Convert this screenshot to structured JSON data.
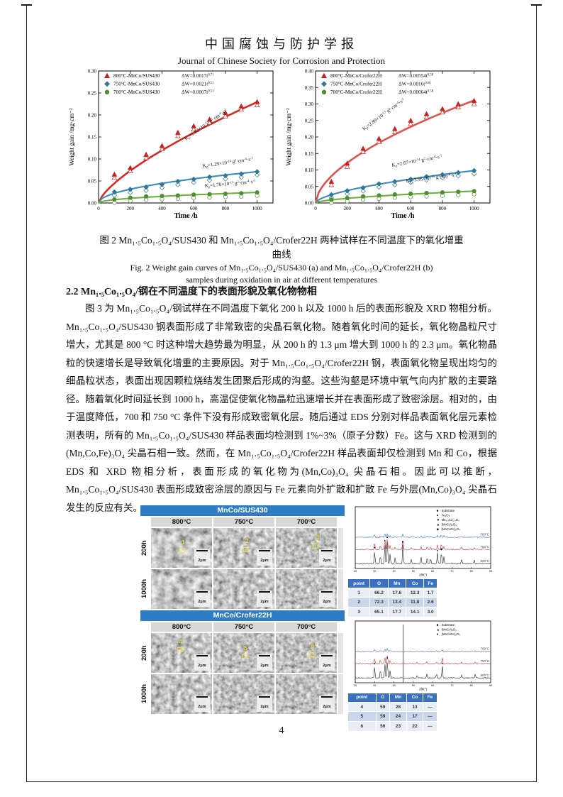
{
  "header": {
    "title_zh": "中国腐蚀与防护学报",
    "title_en": "Journal of Chinese Society for Corrosion and Protection"
  },
  "chart_data": [
    {
      "type": "scatter",
      "panel": "a",
      "xlabel": "Time /h",
      "ylabel": "Weight gain /mg·cm⁻²",
      "xlim": [
        0,
        1100
      ],
      "ylim": [
        0,
        0.3
      ],
      "xticks": [
        0,
        200,
        400,
        600,
        800,
        1000
      ],
      "yticks": [
        "0.00",
        "0.05",
        "0.10",
        "0.15",
        "0.20",
        "0.25",
        "0.30"
      ],
      "x": [
        100,
        200,
        300,
        400,
        500,
        600,
        700,
        800,
        900,
        1000
      ],
      "series": [
        {
          "name": "800°C-MnCo/SUS430",
          "marker": "triangle",
          "color": "#c9211e",
          "line_color": "#d42b22",
          "line_width": 2.6,
          "fit_A": 0.0017,
          "fit_n": 0.71,
          "values": [
            0.065,
            0.08,
            0.11,
            0.13,
            0.16,
            0.175,
            0.19,
            0.205,
            0.22,
            0.23
          ],
          "dw": [
            {
              "t": "ΔW=0.0017t"
            },
            {
              "sup": "0.71"
            }
          ],
          "kp": {
            "x": 169,
            "y": 102,
            "rot": -35,
            "segs": [
              {
                "t": "K"
              },
              {
                "sub": "p"
              },
              {
                "t": "=1.82×10"
              },
              {
                "sup": "-13"
              },
              {
                "t": " g"
              },
              {
                "sup": "2"
              },
              {
                "t": "·cm"
              },
              {
                "sup": "-4"
              },
              {
                "t": "·s"
              },
              {
                "sup": "-1"
              }
            ]
          }
        },
        {
          "name": "750°C-MnCo/SUS430",
          "marker": "diamond",
          "color": "#2e7796",
          "line_color": "#3e8cb8",
          "line_width": 2.1,
          "fit_A": 0.0021,
          "fit_n": 0.51,
          "values": [
            0.025,
            0.031,
            0.036,
            0.042,
            0.049,
            0.054,
            0.059,
            0.062,
            0.066,
            0.071
          ],
          "dw": [
            {
              "t": "ΔW=0.0021t"
            },
            {
              "sup": "0.51"
            }
          ],
          "kp": {
            "x": 193,
            "y": 140,
            "rot": -8,
            "segs": [
              {
                "t": "K"
              },
              {
                "sub": "p"
              },
              {
                "t": "=1.29×10"
              },
              {
                "sup": "-14"
              },
              {
                "t": " g"
              },
              {
                "sup": "2"
              },
              {
                "t": "·cm"
              },
              {
                "sup": "-4"
              },
              {
                "t": "·s"
              },
              {
                "sup": "-1"
              }
            ]
          }
        },
        {
          "name": "700°C-MnCo/SUS430",
          "marker": "circle",
          "color": "#4f8f33",
          "line_color": "#6fb043",
          "line_width": 2.1,
          "fit_A": 0.0007,
          "fit_n": 0.512,
          "values": [
            0.008,
            0.012,
            0.015,
            0.016,
            0.017,
            0.019,
            0.02,
            0.021,
            0.022,
            0.024
          ],
          "dw": [
            {
              "t": "ΔW=0.0007t"
            },
            {
              "sup": "0.51"
            }
          ],
          "kp": {
            "x": 196,
            "y": 168,
            "rot": -5,
            "segs": [
              {
                "t": "K"
              },
              {
                "sub": "p"
              },
              {
                "t": "=1.70×10"
              },
              {
                "sup": "-15"
              },
              {
                "t": " g"
              },
              {
                "sup": "2"
              },
              {
                "t": "·cm"
              },
              {
                "sup": "-4"
              },
              {
                "t": "·s"
              },
              {
                "sup": "-1"
              }
            ]
          }
        }
      ]
    },
    {
      "type": "scatter",
      "panel": "b",
      "xlabel": "Time /h",
      "ylabel": "Weight gain /mg·cm⁻²",
      "xlim": [
        0,
        1100
      ],
      "ylim": [
        0,
        0.4
      ],
      "xticks": [
        0,
        200,
        400,
        600,
        800,
        1000
      ],
      "yticks": [
        "0.00",
        "0.05",
        "0.10",
        "0.15",
        "0.20",
        "0.25",
        "0.30",
        "0.35",
        "0.40"
      ],
      "x": [
        100,
        200,
        300,
        400,
        500,
        600,
        700,
        800,
        900,
        1000
      ],
      "series": [
        {
          "name": "800°C-MnCo/Crofer22H",
          "marker": "triangle",
          "color": "#c9211e",
          "line_color": "#e0534e",
          "line_width": 2.6,
          "fit_A": 0.00554,
          "fit_n": 0.583,
          "values": [
            0.065,
            0.12,
            0.165,
            0.195,
            0.225,
            0.25,
            0.27,
            0.285,
            0.3,
            0.31
          ],
          "dw": [
            {
              "t": "ΔW=0.00554t"
            },
            {
              "sup": "0.58"
            }
          ],
          "kp": {
            "x": 114,
            "y": 88,
            "rot": -36,
            "segs": [
              {
                "t": "K"
              },
              {
                "sub": "p"
              },
              {
                "t": "=2.89×10"
              },
              {
                "sup": "-13"
              },
              {
                "t": " g"
              },
              {
                "sup": "2"
              },
              {
                "t": "·cm"
              },
              {
                "sup": "-4"
              },
              {
                "t": "·s"
              },
              {
                "sup": "-1"
              }
            ]
          }
        },
        {
          "name": "750°C-MnCo/Crofer22H",
          "marker": "diamond",
          "color": "#2e7796",
          "line_color": "#3e8cb8",
          "line_width": 2.1,
          "fit_A": 0.0016,
          "fit_n": 0.596,
          "values": [
            0.025,
            0.037,
            0.046,
            0.058,
            0.065,
            0.072,
            0.08,
            0.086,
            0.092,
            0.098
          ],
          "dw": [
            {
              "t": "ΔW=0.0016t"
            },
            {
              "sup": "0.60"
            }
          ],
          "kp": {
            "x": 154,
            "y": 139,
            "rot": -10,
            "segs": [
              {
                "t": "K"
              },
              {
                "sub": "p"
              },
              {
                "t": "=2.67×10"
              },
              {
                "sup": "-14"
              },
              {
                "t": " g"
              },
              {
                "sup": "2"
              },
              {
                "t": "·cm"
              },
              {
                "sup": "-4"
              },
              {
                "t": "·s"
              },
              {
                "sup": "-1"
              }
            ]
          }
        },
        {
          "name": "700°C-MnCo/Crofer22H",
          "marker": "circle",
          "color": "#4f8f33",
          "line_color": "#6fb043",
          "line_width": 2.1,
          "fit_A": 0.00064,
          "fit_n": 0.583,
          "values": [
            0.01,
            0.015,
            0.02,
            0.023,
            0.026,
            0.028,
            0.03,
            0.032,
            0.034,
            0.036
          ],
          "dw": [
            {
              "t": "ΔW=0.00064t"
            },
            {
              "sup": "0.58"
            }
          ],
          "kp": {
            "x": 174,
            "y": 161,
            "rot": -7,
            "segs": [
              {
                "t": "K"
              },
              {
                "sub": "p"
              },
              {
                "t": "=3.95×10"
              },
              {
                "sup": "-15"
              },
              {
                "t": " g"
              },
              {
                "sup": "2"
              },
              {
                "t": "·cm"
              },
              {
                "sup": "-4"
              },
              {
                "t": "·s"
              },
              {
                "sup": "-1"
              }
            ]
          }
        }
      ]
    }
  ],
  "figure2_caption": {
    "zh1": "图 2  Mn₁.₅Co₁.₅O₄/SUS430 和 Mn₁.₅Co₁.₅O₄/Crofer22H 两种试样在不同温度下的氧化增重",
    "zh2": "曲线",
    "en1": "Fig. 2 Weight gain curves of  Mn₁.₅Co₁.₅O₄/SUS430 (a) and  Mn₁.₅Co₁.₅O₄/Crofer22H (b)",
    "en2": "samples during oxidation in air at different temperatures"
  },
  "section": {
    "heading": "2.2  Mn₁.₅Co₁.₅O₄/钢在不同温度下的表面形貌及氧化物物相",
    "paragraph": "图 3 为 Mn₁.₅Co₁.₅O₄/钢试样在不同温度下氧化 200 h 以及 1000 h 后的表面形貌及 XRD 物相分析。 Mn₁.₅Co₁.₅O₄/SUS430 钢表面形成了非常致密的尖晶石氧化物。随着氧化时间的延长，氧化物晶粒尺寸增大，尤其是 800 °C 时这种增大趋势最为明显，从 200 h 的 1.3 μm 增大到 1000 h 的 2.3 μm。氧化物晶粒的快速增长是导致氧化增重的主要原因。对于 Mn₁.₅Co₁.₅O₄/Crofer22H 钢，表面氧化物呈现出均匀的细晶粒状态，表面出现因颗粒烧结发生团聚后形成的沟壑。这些沟壑是环境中氧气向内扩散的主要路径。随着氧化时间延长到 1000 h，高温促使氧化物晶粒迅速增长并在表面形成了致密涂层。相对的，由于温度降低，700 和 750 °C 条件下没有形成致密氧化层。随后通过 EDS 分别对样品表面氧化层元素检测表明，所有的 Mn₁.₅Co₁.₅O₄/SUS430 样品表面均检测到 1%~3%（原子分数）Fe。这与 XRD 检测到的(Mn,Co,Fe)₃O₄ 尖晶石相一致。然而，在 Mn₁.₅Co₁.₅O₄/Crofer22H 样品表面却仅检测到 Mn 和 Co，根据 EDS 和 XRD 物相分析，表面形成的氧化物为(Mn,Co)₃O₄ 尖晶石相。因此可以推断， Mn₁.₅Co₁.₅O₄/SUS430 表面形成致密涂层的原因与 Fe 元素向外扩散和扩散 Fe 与外层(Mn,Co)₃O₄ 尖晶石发生的反应有关。"
  },
  "figure3": {
    "sections": [
      {
        "banner": "MnCo/SUS430",
        "cols": [
          "800°C",
          "750°C",
          "700°C"
        ],
        "rows": [
          "200h",
          "1000h"
        ],
        "scalebar": "2μm",
        "markers": [
          {
            "r": 0,
            "c": 0,
            "n": "1",
            "nx": 50,
            "ny": 26,
            "sx": 47,
            "sy": 50
          },
          {
            "r": 0,
            "c": 1,
            "n": "2",
            "nx": 52,
            "ny": 24,
            "sx": 49,
            "sy": 48
          },
          {
            "r": 0,
            "c": 2,
            "n": "3",
            "nx": 66,
            "ny": 14,
            "sx": 60,
            "sy": 40
          }
        ]
      },
      {
        "banner": "MnCo/Crofer22H",
        "cols": [
          "800°C",
          "750°C",
          "700°C"
        ],
        "rows": [
          "200h",
          "1000h"
        ],
        "scalebar": "2μm",
        "markers": [
          {
            "r": 0,
            "c": 0,
            "n": "4",
            "nx": 46,
            "ny": 12,
            "sx": 43,
            "sy": 36
          },
          {
            "r": 0,
            "c": 1,
            "n": "5",
            "nx": 50,
            "ny": 28,
            "sx": 47,
            "sy": 52
          },
          {
            "r": 0,
            "c": 2,
            "n": "6",
            "nx": 58,
            "ny": 24,
            "sx": 54,
            "sy": 48
          }
        ]
      }
    ],
    "xrd": [
      {
        "legend": [
          {
            "s": "■",
            "l": "Substrate"
          },
          {
            "s": "●",
            "l": "Fe₂O₃"
          },
          {
            "s": "▼",
            "l": "Mn₁.₅Co₁.₅O₄"
          },
          {
            "s": "▲",
            "l": "(MnCo)₃O₄"
          },
          {
            "s": "◆",
            "l": "(MnCoFe)₃O₄"
          }
        ],
        "trace_labels": [
          "700°C",
          "750°C",
          "800°C"
        ],
        "xlabel": "2θ/(°)",
        "xticks": [
          20,
          30,
          40,
          50,
          60,
          70,
          80,
          90
        ],
        "peaks": [
          [
            30,
            0.55
          ],
          [
            33,
            0.35
          ],
          [
            35.3,
            0.85
          ],
          [
            36.6,
            1.0
          ],
          [
            38,
            0.4
          ],
          [
            40.6,
            0.25
          ],
          [
            44.6,
            0.8
          ],
          [
            49,
            0.2
          ],
          [
            54,
            0.3
          ],
          [
            57.2,
            0.28
          ],
          [
            59,
            0.22
          ],
          [
            62.5,
            0.45
          ],
          [
            64.5,
            0.5
          ],
          [
            65.8,
            0.3
          ],
          [
            75,
            0.18
          ],
          [
            81.5,
            0.15
          ]
        ],
        "marks": [
          {
            "x": 30,
            "s": "▼"
          },
          {
            "x": 35.3,
            "s": "●"
          },
          {
            "x": 36.6,
            "s": "▲"
          },
          {
            "x": 44.6,
            "s": "■"
          },
          {
            "x": 62.5,
            "s": "▲"
          },
          {
            "x": 64.5,
            "s": "◆"
          }
        ],
        "tall_line": null
      },
      {
        "legend": [
          {
            "s": "■",
            "l": "Substrate"
          },
          {
            "s": "▲",
            "l": "(MnCo)₃O₄"
          },
          {
            "s": "●",
            "l": "(MnCoFe)₃O₄"
          }
        ],
        "trace_labels": [
          "700°C",
          "750°C",
          "800°C"
        ],
        "xlabel": "2θ/(°)",
        "xticks": [
          20,
          30,
          40,
          50,
          60,
          70,
          80,
          90
        ],
        "peaks": [
          [
            30,
            0.5
          ],
          [
            33,
            0.35
          ],
          [
            35.3,
            0.6
          ],
          [
            36.6,
            0.75
          ],
          [
            38,
            0.3
          ],
          [
            52,
            0.12
          ],
          [
            57,
            0.15
          ],
          [
            62,
            0.18
          ],
          [
            65,
            0.5
          ],
          [
            75,
            0.1
          ],
          [
            82,
            0.15
          ]
        ],
        "marks": [
          {
            "x": 30,
            "s": "▲"
          },
          {
            "x": 36.6,
            "s": "▲"
          },
          {
            "x": 65,
            "s": "●"
          }
        ],
        "tall_line": 44.8
      }
    ],
    "eds_tables": [
      {
        "headers": [
          "point",
          "O",
          "Mn",
          "Co",
          "Fe"
        ],
        "rows": [
          [
            "1",
            "66.2",
            "17.6",
            "12.3",
            "1.7"
          ],
          [
            "2",
            "72.3",
            "13.4",
            "11.8",
            "2.6"
          ],
          [
            "3",
            "65.1",
            "17.7",
            "14.1",
            "3.0"
          ]
        ]
      },
      {
        "headers": [
          "point",
          "O",
          "Mn",
          "Co",
          "Fe"
        ],
        "rows": [
          [
            "4",
            "59",
            "28",
            "13",
            "—"
          ],
          [
            "5",
            "59",
            "24",
            "17",
            "—"
          ],
          [
            "6",
            "56",
            "23",
            "22",
            "—"
          ]
        ]
      }
    ]
  },
  "footer": {
    "page_number": "4"
  }
}
